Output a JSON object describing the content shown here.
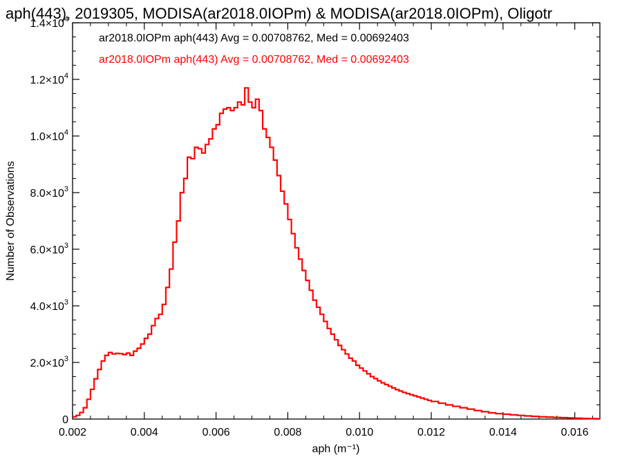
{
  "chart_data": {
    "type": "histogram",
    "title": "aph(443), 2019305, MODISA(ar2018.0IOPm) & MODISA(ar2018.0IOPm), Oligotr",
    "xlabel": "aph (m⁻¹)",
    "ylabel": "Number of Observations",
    "xlim": [
      0.002,
      0.0167
    ],
    "ylim": [
      0,
      14000
    ],
    "x_ticks": [
      "0.002",
      "0.004",
      "0.006",
      "0.008",
      "0.010",
      "0.012",
      "0.014",
      "0.016"
    ],
    "x_tick_values": [
      0.002,
      0.004,
      0.006,
      0.008,
      0.01,
      0.012,
      0.014,
      0.016
    ],
    "y_ticks": [
      {
        "value": 0,
        "mant": "0",
        "exp": ""
      },
      {
        "value": 2000,
        "mant": "2.0×10",
        "exp": "3"
      },
      {
        "value": 4000,
        "mant": "4.0×10",
        "exp": "3"
      },
      {
        "value": 6000,
        "mant": "6.0×10",
        "exp": "3"
      },
      {
        "value": 8000,
        "mant": "8.0×10",
        "exp": "3"
      },
      {
        "value": 10000,
        "mant": "1.0×10",
        "exp": "4"
      },
      {
        "value": 12000,
        "mant": "1.2×10",
        "exp": "4"
      },
      {
        "value": 14000,
        "mant": "1.4×10",
        "exp": "4"
      }
    ],
    "legend": [
      {
        "text": "ar2018.0IOPm aph(443) Avg = 0.00708762, Med = 0.00692403",
        "color": "#000000"
      },
      {
        "text": "ar2018.0IOPm aph(443) Avg = 0.00708762, Med = 0.00692403",
        "color": "#ff0000"
      }
    ],
    "series": [
      {
        "color": "#ff0000",
        "x": [
          0.002,
          0.0021,
          0.0022,
          0.0023,
          0.0024,
          0.0025,
          0.0026,
          0.0027,
          0.0028,
          0.0029,
          0.003,
          0.0031,
          0.0032,
          0.0033,
          0.0034,
          0.0035,
          0.0036,
          0.0037,
          0.0038,
          0.0039,
          0.004,
          0.0041,
          0.0042,
          0.0043,
          0.0044,
          0.0045,
          0.0046,
          0.0047,
          0.0048,
          0.0049,
          0.005,
          0.0051,
          0.0052,
          0.0053,
          0.0054,
          0.0055,
          0.0056,
          0.0057,
          0.0058,
          0.0059,
          0.006,
          0.0061,
          0.0062,
          0.0063,
          0.0064,
          0.0065,
          0.0066,
          0.0067,
          0.0068,
          0.0069,
          0.007,
          0.0071,
          0.0072,
          0.0073,
          0.0074,
          0.0075,
          0.0076,
          0.0077,
          0.0078,
          0.0079,
          0.008,
          0.0081,
          0.0082,
          0.0083,
          0.0084,
          0.0085,
          0.0086,
          0.0087,
          0.0088,
          0.0089,
          0.009,
          0.0091,
          0.0092,
          0.0093,
          0.0094,
          0.0095,
          0.0096,
          0.0097,
          0.0098,
          0.0099,
          0.01,
          0.0101,
          0.0102,
          0.0103,
          0.0104,
          0.0105,
          0.0106,
          0.0107,
          0.0108,
          0.0109,
          0.011,
          0.0111,
          0.0112,
          0.0113,
          0.0114,
          0.0115,
          0.0116,
          0.0117,
          0.0118,
          0.0119,
          0.012,
          0.0122,
          0.0124,
          0.0126,
          0.0128,
          0.013,
          0.0132,
          0.0134,
          0.0136,
          0.0138,
          0.014,
          0.0142,
          0.0144,
          0.0146,
          0.0148,
          0.015,
          0.0152,
          0.0154,
          0.0156,
          0.0158,
          0.016,
          0.0162,
          0.0164,
          0.0166
        ],
        "values": [
          80,
          130,
          230,
          400,
          700,
          1050,
          1420,
          1750,
          2050,
          2250,
          2350,
          2300,
          2320,
          2310,
          2280,
          2330,
          2250,
          2400,
          2500,
          2650,
          2850,
          3000,
          3300,
          3550,
          3700,
          4050,
          4650,
          5300,
          6250,
          7000,
          8000,
          8500,
          9250,
          9200,
          9600,
          9550,
          9400,
          9700,
          9900,
          10250,
          10400,
          10800,
          10950,
          11000,
          10900,
          11000,
          11200,
          11100,
          11700,
          11200,
          11000,
          11300,
          10900,
          10250,
          9950,
          9600,
          9150,
          8600,
          8050,
          7600,
          7050,
          6550,
          6050,
          5650,
          5250,
          4900,
          4550,
          4200,
          3950,
          3700,
          3450,
          3200,
          3000,
          2800,
          2600,
          2450,
          2300,
          2150,
          2050,
          1900,
          1800,
          1700,
          1600,
          1500,
          1430,
          1350,
          1280,
          1220,
          1160,
          1100,
          1040,
          990,
          940,
          900,
          860,
          820,
          780,
          740,
          700,
          660,
          620,
          560,
          500,
          450,
          400,
          350,
          300,
          260,
          220,
          190,
          170,
          150,
          130,
          110,
          95,
          80,
          70,
          60,
          50,
          40,
          30,
          20,
          15,
          10
        ]
      }
    ]
  }
}
